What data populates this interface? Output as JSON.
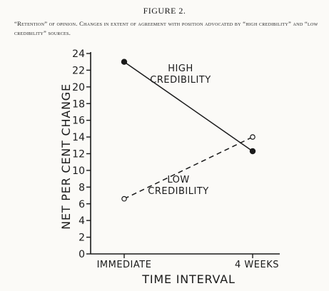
{
  "figure_label": "FIGURE 2.",
  "caption": "“Retention” of opinion. Changes in extent of agreement with position advocated by “high credibility” and “low credibility” sources.",
  "chart_data": {
    "type": "line",
    "categories": [
      "IMMEDIATE",
      "4 WEEKS"
    ],
    "xlabel": "TIME INTERVAL",
    "ylabel": "NET PER CENT CHANGE",
    "ylim": [
      0,
      24
    ],
    "yticks": [
      0,
      2,
      4,
      6,
      8,
      10,
      12,
      14,
      16,
      18,
      20,
      22,
      24
    ],
    "grid": false,
    "series": [
      {
        "name_lines": [
          "HIGH",
          "CREDIBILITY"
        ],
        "values": [
          23.0,
          12.3
        ],
        "marker": "filled-circle",
        "line": "solid"
      },
      {
        "name_lines": [
          "LOW",
          "CREDIBILITY"
        ],
        "values": [
          6.6,
          14.0
        ],
        "marker": "open-circle",
        "line": "dashed"
      }
    ]
  }
}
